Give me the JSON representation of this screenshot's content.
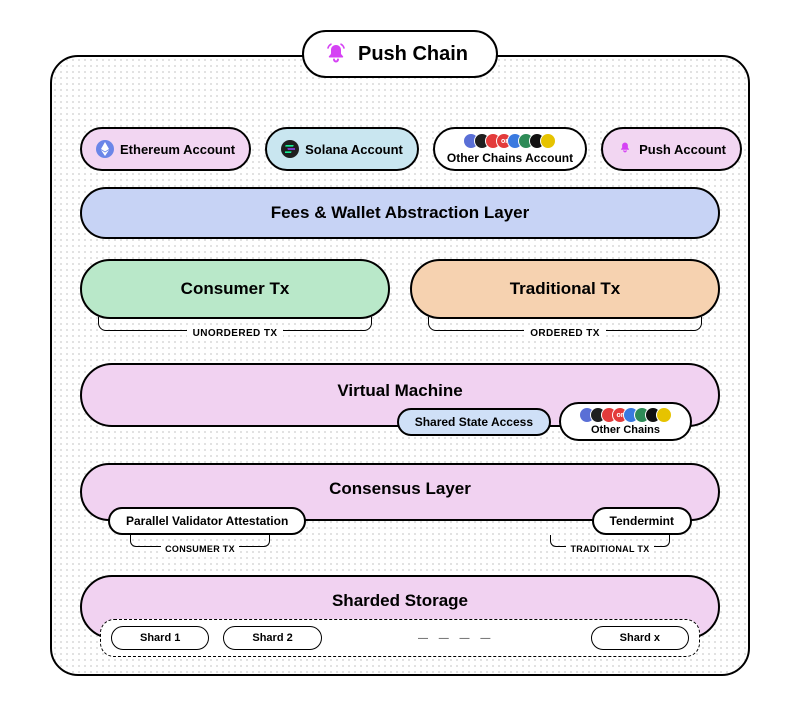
{
  "title": "Push Chain",
  "colors": {
    "bg_pink": "#f2d6f2",
    "bg_blue_light": "#c9e6f0",
    "bg_push": "#f2d6f2",
    "layer_blue": "#c7d3f5",
    "tx_green": "#b9e8c9",
    "tx_orange": "#f6d2b0",
    "layer_pink": "#f1d2f1",
    "sub_blue": "#cfe0f7",
    "white": "#ffffff",
    "eth_icon": "#6b86e8",
    "sol_icon": "#1f1f1f",
    "bell": "#d542f4",
    "cluster": [
      "#5a6fd6",
      "#1f1f1f",
      "#e33b3b",
      "#e33b3b",
      "#3a7ae0",
      "#2e8b57",
      "#111111",
      "#e6c300"
    ]
  },
  "accounts": [
    {
      "label": "Ethereum Account",
      "bg_key": "bg_pink",
      "icon": "eth"
    },
    {
      "label": "Solana Account",
      "bg_key": "bg_blue_light",
      "icon": "sol"
    },
    {
      "label": "Other Chains Account",
      "bg_key": "white",
      "icon": "cluster"
    },
    {
      "label": "Push Account",
      "bg_key": "bg_push",
      "icon": "bell"
    }
  ],
  "fees_layer": "Fees & Wallet Abstraction Layer",
  "tx": {
    "consumer": "Consumer Tx",
    "traditional": "Traditional Tx",
    "unordered_label": "UNORDERED TX",
    "ordered_label": "ORDERED TX"
  },
  "vm": {
    "title": "Virtual Machine",
    "shared_state": "Shared State Access",
    "other_chains": "Other Chains"
  },
  "consensus": {
    "title": "Consensus Layer",
    "left_sub": "Parallel Validator Attestation",
    "right_sub": "Tendermint",
    "left_bracket": "CONSUMER TX",
    "right_bracket": "TRADITIONAL TX"
  },
  "storage": {
    "title": "Sharded Storage",
    "shards": [
      "Shard 1",
      "Shard 2",
      "Shard x"
    ]
  }
}
